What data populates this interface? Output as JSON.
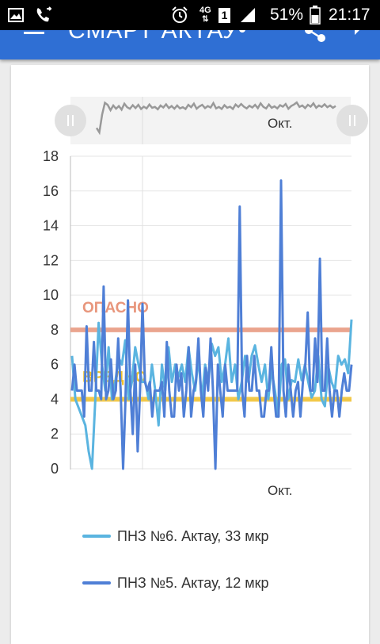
{
  "status_bar": {
    "network": "4G",
    "sim": "1",
    "battery": "51%",
    "time": "21:17",
    "icons": [
      "image-icon",
      "call-forward-icon",
      "alarm-icon",
      "signal-icon",
      "battery-icon"
    ]
  },
  "app_bar": {
    "title": "СМАРТ АКТАУ",
    "icons": [
      "menu-icon",
      "share-icon",
      "chat-icon"
    ]
  },
  "colors": {
    "app_bar": "#2f6fd4",
    "series_6": "#5ab4e0",
    "series_5": "#4f7fd6",
    "danger": "#e8967c",
    "harmful": "#f0c02a"
  },
  "chart_data": {
    "type": "line",
    "title": "",
    "xlabel": "",
    "ylabel": "",
    "ylim": [
      0,
      18
    ],
    "y_ticks": [
      "0",
      "2",
      "4",
      "6",
      "8",
      "10",
      "12",
      "14",
      "16",
      "18"
    ],
    "x_tick_label": "Окт.",
    "navigator_label": "Окт.",
    "thresholds": [
      {
        "label": "ОПАСНО",
        "value": 8
      },
      {
        "label": "ВРЕДНО",
        "value": 4
      }
    ],
    "series": [
      {
        "name": "ПНЗ №6. Актау, 33 мкр",
        "values": [
          6.5,
          4,
          3.5,
          3,
          2.5,
          1,
          0,
          4,
          8.4,
          6,
          4.5,
          7,
          4,
          5,
          6.4,
          6,
          7.4,
          4,
          5,
          7,
          6,
          5,
          5,
          4,
          6,
          4.5,
          2.5,
          6,
          4.5,
          7,
          5,
          6,
          5.3,
          6,
          5,
          7,
          5.5,
          4.5,
          6.4,
          4,
          6,
          5,
          7.2,
          6.5,
          7,
          5,
          6,
          7.5,
          5,
          6,
          4,
          5,
          6.5,
          5,
          6.5,
          7.1,
          6,
          5,
          6,
          4,
          5.7,
          4.5,
          3,
          6,
          6.3,
          4,
          5.1,
          5,
          6.3,
          5.1,
          6,
          5,
          4.1,
          4.5,
          6.5,
          4,
          3.6,
          5.9,
          5,
          4.5,
          6.5,
          6,
          6.3,
          5.5,
          8.6
        ]
      },
      {
        "name": "ПНЗ №5. Актау, 12 мкр",
        "values": [
          4.5,
          6,
          4.5,
          4.5,
          4.5,
          3,
          8.2,
          4.5,
          4.5,
          7.3,
          4.5,
          4.5,
          4,
          10.5,
          4,
          4.5,
          6.3,
          4,
          4.5,
          7.5,
          4.5,
          0,
          4,
          9.7,
          4.5,
          2,
          6,
          1,
          4.5,
          9.5,
          5,
          4.5,
          5,
          3,
          4.5,
          4.5,
          4.5,
          5,
          3,
          7.3,
          4.5,
          3,
          3,
          6,
          4.5,
          5.5,
          3,
          4.5,
          7,
          3,
          4.5,
          5,
          7.5,
          4.5,
          3,
          5.8,
          4.5,
          7.5,
          4.5,
          0,
          6,
          4.5,
          3,
          6,
          4.5,
          4.5,
          4.5,
          4.5,
          4.5,
          15.1,
          4.5,
          3,
          6.5,
          4.5,
          4.5,
          6.5,
          4.5,
          4.5,
          3,
          3,
          4.5,
          4.5,
          7,
          4.5,
          3,
          3,
          16.6,
          4.5,
          3,
          6,
          4.5,
          3,
          4.5,
          5,
          3,
          5,
          6,
          9,
          4.5,
          4.5,
          7.5,
          5,
          12.1,
          4.5,
          4.5,
          7.5,
          4.5,
          3,
          4.5,
          4.5,
          3,
          4.5,
          5.5,
          4.5,
          4.5,
          6
        ]
      }
    ]
  },
  "navigator": {
    "values": [
      5,
      3.5,
      9.5,
      13.5,
      12.8,
      11,
      12.6,
      11.5,
      12.4,
      11.2,
      13.2,
      12,
      11.5,
      12.7,
      11.7,
      12.8,
      11.4,
      12.2,
      11.6,
      12.9,
      11.8,
      12.1,
      11.3,
      12.6,
      11.9,
      13,
      11.7,
      12.4,
      11.5,
      12.6,
      11.6,
      12,
      11.4,
      12.8,
      12,
      13.2,
      11.5,
      12.3,
      12.8,
      11.7,
      12.4,
      11.9,
      13.4,
      11.6,
      12.1,
      11.4,
      12.7,
      11.8,
      12.2,
      11.4,
      12.9,
      12.1,
      13.1,
      12.2,
      11.6,
      12.5,
      11.9,
      12.8,
      11.7,
      13.3,
      12.1,
      11.6,
      12.9,
      11.8,
      12.3,
      11.6,
      12.7,
      12.2,
      13.1,
      11.5,
      12.4,
      12.9,
      13.6,
      12.1,
      12.6,
      11.7,
      12.8,
      12.2,
      13.3,
      11.8,
      12.6,
      12.1,
      13,
      12,
      12.6,
      11.8,
      12.4
    ]
  }
}
